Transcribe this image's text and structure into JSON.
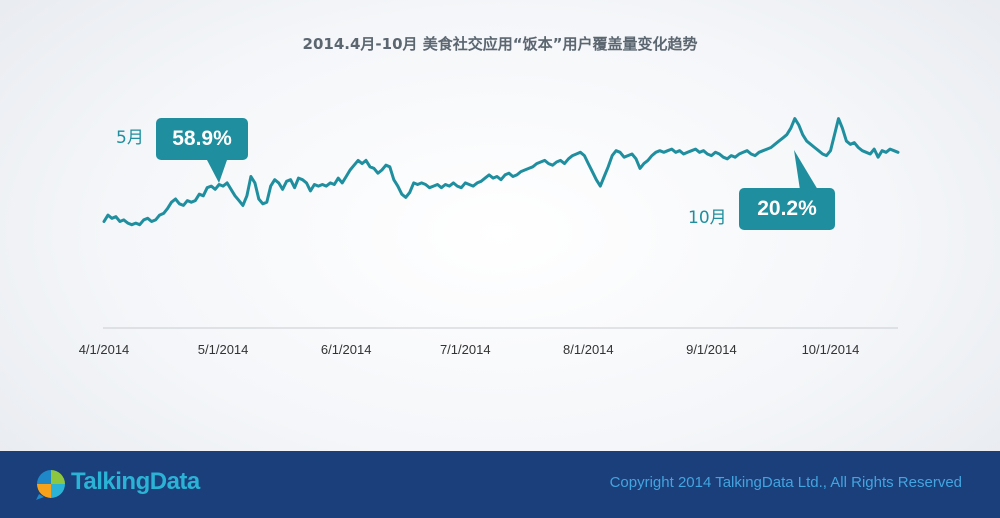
{
  "chart_data": {
    "type": "line",
    "title": "2014.4月-10月 美食社交应用“饭本”用户覆盖量变化趋势",
    "xlabel": "",
    "ylabel": "",
    "x_ticks": [
      "4/1/2014",
      "5/1/2014",
      "6/1/2014",
      "7/1/2014",
      "8/1/2014",
      "9/1/2014",
      "10/1/2014"
    ],
    "grid": false,
    "legend": "none",
    "ylim": [
      0,
      100
    ],
    "series": [
      {
        "name": "",
        "color": "#1f8f9f",
        "points": [
          [
            "4/1/2014",
            14
          ],
          [
            "4/2/2014",
            18
          ],
          [
            "4/3/2014",
            16
          ],
          [
            "4/4/2014",
            17
          ],
          [
            "4/5/2014",
            14
          ],
          [
            "4/6/2014",
            15
          ],
          [
            "4/7/2014",
            13
          ],
          [
            "4/8/2014",
            12
          ],
          [
            "4/9/2014",
            13
          ],
          [
            "4/10/2014",
            12
          ],
          [
            "4/11/2014",
            15
          ],
          [
            "4/12/2014",
            16
          ],
          [
            "4/13/2014",
            14
          ],
          [
            "4/14/2014",
            15
          ],
          [
            "4/15/2014",
            18
          ],
          [
            "4/16/2014",
            19
          ],
          [
            "4/17/2014",
            22
          ],
          [
            "4/18/2014",
            26
          ],
          [
            "4/19/2014",
            28
          ],
          [
            "4/20/2014",
            25
          ],
          [
            "4/21/2014",
            24
          ],
          [
            "4/22/2014",
            27
          ],
          [
            "4/23/2014",
            26
          ],
          [
            "4/24/2014",
            27
          ],
          [
            "4/25/2014",
            31
          ],
          [
            "4/26/2014",
            30
          ],
          [
            "4/27/2014",
            35
          ],
          [
            "4/28/2014",
            36
          ],
          [
            "4/29/2014",
            34
          ],
          [
            "4/30/2014",
            37
          ],
          [
            "5/1/2014",
            36
          ],
          [
            "5/2/2014",
            38
          ],
          [
            "5/3/2014",
            34
          ],
          [
            "5/4/2014",
            30
          ],
          [
            "5/5/2014",
            27
          ],
          [
            "5/6/2014",
            24
          ],
          [
            "5/7/2014",
            30
          ],
          [
            "5/8/2014",
            42
          ],
          [
            "5/9/2014",
            38
          ],
          [
            "5/10/2014",
            28
          ],
          [
            "5/11/2014",
            25
          ],
          [
            "5/12/2014",
            26
          ],
          [
            "5/13/2014",
            36
          ],
          [
            "5/14/2014",
            40
          ],
          [
            "5/15/2014",
            38
          ],
          [
            "5/16/2014",
            34
          ],
          [
            "5/17/2014",
            39
          ],
          [
            "5/18/2014",
            40
          ],
          [
            "5/19/2014",
            35
          ],
          [
            "5/20/2014",
            41
          ],
          [
            "5/21/2014",
            40
          ],
          [
            "5/22/2014",
            38
          ],
          [
            "5/23/2014",
            33
          ],
          [
            "5/24/2014",
            37
          ],
          [
            "5/25/2014",
            36
          ],
          [
            "5/26/2014",
            37
          ],
          [
            "5/27/2014",
            36
          ],
          [
            "5/28/2014",
            38
          ],
          [
            "5/29/2014",
            37
          ],
          [
            "5/30/2014",
            41
          ],
          [
            "5/31/2014",
            38
          ],
          [
            "6/1/2014",
            42
          ],
          [
            "6/2/2014",
            46
          ],
          [
            "6/3/2014",
            49
          ],
          [
            "6/4/2014",
            52
          ],
          [
            "6/5/2014",
            50
          ],
          [
            "6/6/2014",
            52
          ],
          [
            "6/7/2014",
            48
          ],
          [
            "6/8/2014",
            47
          ],
          [
            "6/9/2014",
            44
          ],
          [
            "6/10/2014",
            46
          ],
          [
            "6/11/2014",
            49
          ],
          [
            "6/12/2014",
            48
          ],
          [
            "6/13/2014",
            40
          ],
          [
            "6/14/2014",
            36
          ],
          [
            "6/15/2014",
            31
          ],
          [
            "6/16/2014",
            29
          ],
          [
            "6/17/2014",
            32
          ],
          [
            "6/18/2014",
            38
          ],
          [
            "6/19/2014",
            37
          ],
          [
            "6/20/2014",
            38
          ],
          [
            "6/21/2014",
            37
          ],
          [
            "6/22/2014",
            35
          ],
          [
            "6/23/2014",
            36
          ],
          [
            "6/24/2014",
            37
          ],
          [
            "6/25/2014",
            35
          ],
          [
            "6/26/2014",
            37
          ],
          [
            "6/27/2014",
            36
          ],
          [
            "6/28/2014",
            38
          ],
          [
            "6/29/2014",
            36
          ],
          [
            "6/30/2014",
            35
          ],
          [
            "7/1/2014",
            38
          ],
          [
            "7/2/2014",
            37
          ],
          [
            "7/3/2014",
            36
          ],
          [
            "7/4/2014",
            38
          ],
          [
            "7/5/2014",
            39
          ],
          [
            "7/6/2014",
            41
          ],
          [
            "7/7/2014",
            43
          ],
          [
            "7/8/2014",
            41
          ],
          [
            "7/9/2014",
            42
          ],
          [
            "7/10/2014",
            40
          ],
          [
            "7/11/2014",
            43
          ],
          [
            "7/12/2014",
            44
          ],
          [
            "7/13/2014",
            42
          ],
          [
            "7/14/2014",
            43
          ],
          [
            "7/15/2014",
            45
          ],
          [
            "7/16/2014",
            46
          ],
          [
            "7/17/2014",
            47
          ],
          [
            "7/18/2014",
            48
          ],
          [
            "7/19/2014",
            50
          ],
          [
            "7/20/2014",
            51
          ],
          [
            "7/21/2014",
            52
          ],
          [
            "7/22/2014",
            50
          ],
          [
            "7/23/2014",
            49
          ],
          [
            "7/24/2014",
            51
          ],
          [
            "7/25/2014",
            52
          ],
          [
            "7/26/2014",
            50
          ],
          [
            "7/27/2014",
            53
          ],
          [
            "7/28/2014",
            55
          ],
          [
            "7/29/2014",
            56
          ],
          [
            "7/30/2014",
            57
          ],
          [
            "7/31/2014",
            55
          ],
          [
            "8/1/2014",
            50
          ],
          [
            "8/2/2014",
            45
          ],
          [
            "8/3/2014",
            40
          ],
          [
            "8/4/2014",
            36
          ],
          [
            "8/5/2014",
            42
          ],
          [
            "8/6/2014",
            48
          ],
          [
            "8/7/2014",
            55
          ],
          [
            "8/8/2014",
            58
          ],
          [
            "8/9/2014",
            57
          ],
          [
            "8/10/2014",
            54
          ],
          [
            "8/11/2014",
            55
          ],
          [
            "8/12/2014",
            56
          ],
          [
            "8/13/2014",
            53
          ],
          [
            "8/14/2014",
            47
          ],
          [
            "8/15/2014",
            50
          ],
          [
            "8/16/2014",
            52
          ],
          [
            "8/17/2014",
            55
          ],
          [
            "8/18/2014",
            57
          ],
          [
            "8/19/2014",
            58
          ],
          [
            "8/20/2014",
            57
          ],
          [
            "8/21/2014",
            58
          ],
          [
            "8/22/2014",
            59
          ],
          [
            "8/23/2014",
            57
          ],
          [
            "8/24/2014",
            58
          ],
          [
            "8/25/2014",
            56
          ],
          [
            "8/26/2014",
            57
          ],
          [
            "8/27/2014",
            58
          ],
          [
            "8/28/2014",
            59
          ],
          [
            "8/29/2014",
            57
          ],
          [
            "8/30/2014",
            58
          ],
          [
            "8/31/2014",
            56
          ],
          [
            "9/1/2014",
            55
          ],
          [
            "9/2/2014",
            57
          ],
          [
            "9/3/2014",
            56
          ],
          [
            "9/4/2014",
            54
          ],
          [
            "9/5/2014",
            53
          ],
          [
            "9/6/2014",
            55
          ],
          [
            "9/7/2014",
            54
          ],
          [
            "9/8/2014",
            56
          ],
          [
            "9/9/2014",
            57
          ],
          [
            "9/10/2014",
            58
          ],
          [
            "9/11/2014",
            56
          ],
          [
            "9/12/2014",
            55
          ],
          [
            "9/13/2014",
            57
          ],
          [
            "9/14/2014",
            58
          ],
          [
            "9/15/2014",
            59
          ],
          [
            "9/16/2014",
            60
          ],
          [
            "9/17/2014",
            62
          ],
          [
            "9/18/2014",
            64
          ],
          [
            "9/19/2014",
            66
          ],
          [
            "9/20/2014",
            68
          ],
          [
            "9/21/2014",
            72
          ],
          [
            "9/22/2014",
            78
          ],
          [
            "9/23/2014",
            74
          ],
          [
            "9/24/2014",
            68
          ],
          [
            "9/25/2014",
            64
          ],
          [
            "9/26/2014",
            62
          ],
          [
            "9/27/2014",
            60
          ],
          [
            "9/28/2014",
            58
          ],
          [
            "9/29/2014",
            56
          ],
          [
            "9/30/2014",
            55
          ],
          [
            "10/1/2014",
            58
          ],
          [
            "10/2/2014",
            68
          ],
          [
            "10/3/2014",
            78
          ],
          [
            "10/4/2014",
            72
          ],
          [
            "10/5/2014",
            64
          ],
          [
            "10/6/2014",
            62
          ],
          [
            "10/7/2014",
            63
          ],
          [
            "10/8/2014",
            60
          ],
          [
            "10/9/2014",
            58
          ],
          [
            "10/10/2014",
            57
          ],
          [
            "10/11/2014",
            56
          ],
          [
            "10/12/2014",
            59
          ],
          [
            "10/13/2014",
            54
          ],
          [
            "10/14/2014",
            58
          ],
          [
            "10/15/2014",
            57
          ],
          [
            "10/16/2014",
            59
          ],
          [
            "10/17/2014",
            58
          ],
          [
            "10/18/2014",
            57
          ]
        ]
      }
    ]
  },
  "callouts": {
    "may": {
      "label": "5月",
      "value": "58.9%"
    },
    "october": {
      "label": "10月",
      "value": "20.2%"
    }
  },
  "footer": {
    "brand": "TalkingData",
    "copyright": "Copyright 2014 TalkingData Ltd., All Rights Reserved"
  },
  "colors": {
    "accent": "#1f8f9f",
    "footer_bg": "#1a3f7a",
    "brand": "#2bb3d6",
    "copyright": "#43a4e0"
  }
}
